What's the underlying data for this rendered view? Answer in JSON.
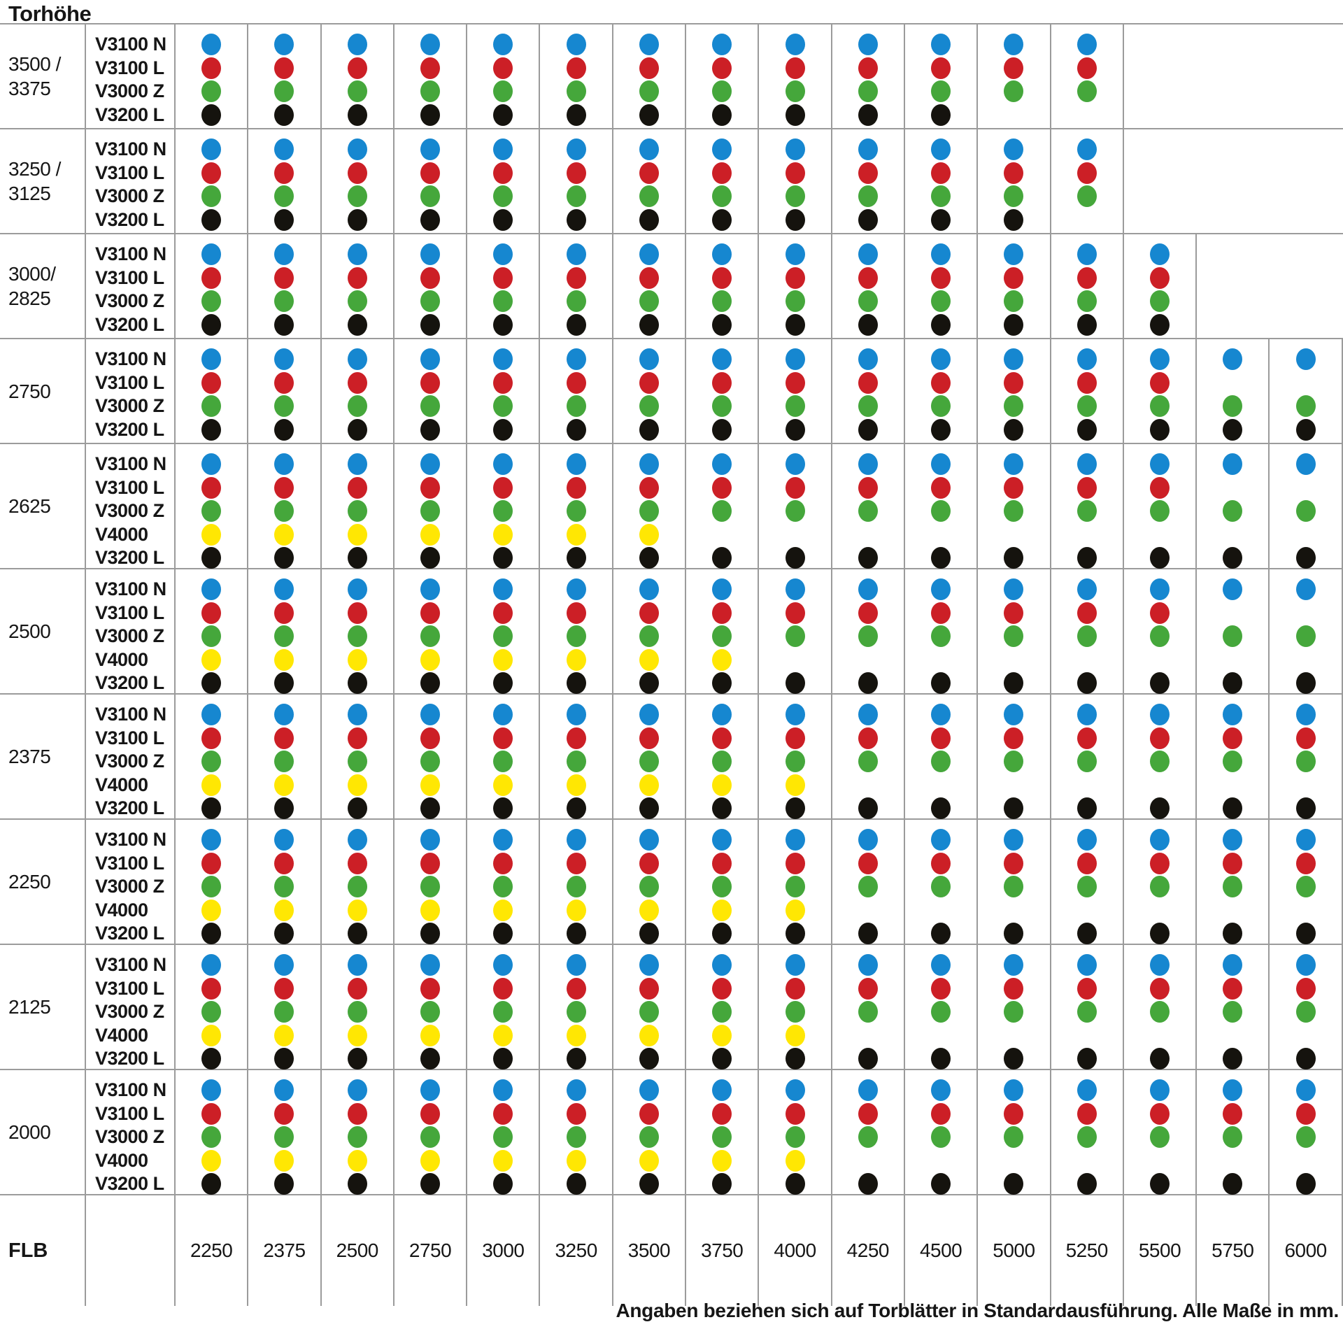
{
  "chart_data": {
    "type": "table",
    "title": "Torhöhe",
    "x_axis_label": "FLB",
    "footer_note": "Angaben beziehen sich auf Torblätter in Standardausführung. Alle Maße in mm.",
    "flb_values": [
      "2250",
      "2375",
      "2500",
      "2750",
      "3000",
      "3250",
      "3500",
      "3750",
      "4000",
      "4250",
      "4500",
      "5000",
      "5250",
      "5500",
      "5750",
      "6000"
    ],
    "palette": {
      "blue": "#1687d0",
      "red": "#cc1f26",
      "green": "#45a73b",
      "yellow": "#ffe703",
      "black": "#15130e"
    },
    "legend_note": "dot present = model available for this Torhöhe / FLB combination",
    "groups": [
      {
        "torhoehe": [
          "3500 /",
          "3375"
        ],
        "grid_upto_flb": "5250",
        "models": [
          {
            "name": "V3100 N",
            "color": "blue",
            "upto_flb": "5250"
          },
          {
            "name": "V3100 L",
            "color": "red",
            "upto_flb": "5250"
          },
          {
            "name": "V3000 Z",
            "color": "green",
            "upto_flb": "5250"
          },
          {
            "name": "V3200 L",
            "color": "black",
            "upto_flb": "4500"
          }
        ]
      },
      {
        "torhoehe": [
          "3250 /",
          "3125"
        ],
        "grid_upto_flb": "5250",
        "models": [
          {
            "name": "V3100 N",
            "color": "blue",
            "upto_flb": "5250"
          },
          {
            "name": "V3100 L",
            "color": "red",
            "upto_flb": "5250"
          },
          {
            "name": "V3000 Z",
            "color": "green",
            "upto_flb": "5250"
          },
          {
            "name": "V3200 L",
            "color": "black",
            "upto_flb": "5000"
          }
        ]
      },
      {
        "torhoehe": [
          "3000/",
          "2825"
        ],
        "grid_upto_flb": "5500",
        "models": [
          {
            "name": "V3100 N",
            "color": "blue",
            "upto_flb": "5500"
          },
          {
            "name": "V3100 L",
            "color": "red",
            "upto_flb": "5500"
          },
          {
            "name": "V3000 Z",
            "color": "green",
            "upto_flb": "5500"
          },
          {
            "name": "V3200 L",
            "color": "black",
            "upto_flb": "5500"
          }
        ]
      },
      {
        "torhoehe": [
          "2750"
        ],
        "grid_upto_flb": "6000",
        "models": [
          {
            "name": "V3100 N",
            "color": "blue",
            "upto_flb": "6000"
          },
          {
            "name": "V3100 L",
            "color": "red",
            "upto_flb": "5500"
          },
          {
            "name": "V3000 Z",
            "color": "green",
            "upto_flb": "6000"
          },
          {
            "name": "V3200 L",
            "color": "black",
            "upto_flb": "6000"
          }
        ]
      },
      {
        "torhoehe": [
          "2625"
        ],
        "grid_upto_flb": "6000",
        "models": [
          {
            "name": "V3100 N",
            "color": "blue",
            "upto_flb": "6000"
          },
          {
            "name": "V3100 L",
            "color": "red",
            "upto_flb": "5500"
          },
          {
            "name": "V3000 Z",
            "color": "green",
            "upto_flb": "6000"
          },
          {
            "name": "V4000",
            "color": "yellow",
            "upto_flb": "3500"
          },
          {
            "name": "V3200 L",
            "color": "black",
            "upto_flb": "6000"
          }
        ]
      },
      {
        "torhoehe": [
          "2500"
        ],
        "grid_upto_flb": "6000",
        "models": [
          {
            "name": "V3100 N",
            "color": "blue",
            "upto_flb": "6000"
          },
          {
            "name": "V3100 L",
            "color": "red",
            "upto_flb": "5500"
          },
          {
            "name": "V3000 Z",
            "color": "green",
            "upto_flb": "6000"
          },
          {
            "name": "V4000",
            "color": "yellow",
            "upto_flb": "3750"
          },
          {
            "name": "V3200 L",
            "color": "black",
            "upto_flb": "6000"
          }
        ]
      },
      {
        "torhoehe": [
          "2375"
        ],
        "grid_upto_flb": "6000",
        "models": [
          {
            "name": "V3100 N",
            "color": "blue",
            "upto_flb": "6000"
          },
          {
            "name": "V3100 L",
            "color": "red",
            "upto_flb": "6000"
          },
          {
            "name": "V3000 Z",
            "color": "green",
            "upto_flb": "6000"
          },
          {
            "name": "V4000",
            "color": "yellow",
            "upto_flb": "4000"
          },
          {
            "name": "V3200 L",
            "color": "black",
            "upto_flb": "6000"
          }
        ]
      },
      {
        "torhoehe": [
          "2250"
        ],
        "grid_upto_flb": "6000",
        "models": [
          {
            "name": "V3100 N",
            "color": "blue",
            "upto_flb": "6000"
          },
          {
            "name": "V3100 L",
            "color": "red",
            "upto_flb": "6000"
          },
          {
            "name": "V3000 Z",
            "color": "green",
            "upto_flb": "6000"
          },
          {
            "name": "V4000",
            "color": "yellow",
            "upto_flb": "4000"
          },
          {
            "name": "V3200 L",
            "color": "black",
            "upto_flb": "6000"
          }
        ]
      },
      {
        "torhoehe": [
          "2125"
        ],
        "grid_upto_flb": "6000",
        "models": [
          {
            "name": "V3100 N",
            "color": "blue",
            "upto_flb": "6000"
          },
          {
            "name": "V3100 L",
            "color": "red",
            "upto_flb": "6000"
          },
          {
            "name": "V3000 Z",
            "color": "green",
            "upto_flb": "6000"
          },
          {
            "name": "V4000",
            "color": "yellow",
            "upto_flb": "4000"
          },
          {
            "name": "V3200 L",
            "color": "black",
            "upto_flb": "6000"
          }
        ]
      },
      {
        "torhoehe": [
          "2000"
        ],
        "grid_upto_flb": "6000",
        "models": [
          {
            "name": "V3100 N",
            "color": "blue",
            "upto_flb": "6000"
          },
          {
            "name": "V3100 L",
            "color": "red",
            "upto_flb": "6000"
          },
          {
            "name": "V3000 Z",
            "color": "green",
            "upto_flb": "6000"
          },
          {
            "name": "V4000",
            "color": "yellow",
            "upto_flb": "4000"
          },
          {
            "name": "V3200 L",
            "color": "black",
            "upto_flb": "6000"
          }
        ]
      }
    ]
  }
}
